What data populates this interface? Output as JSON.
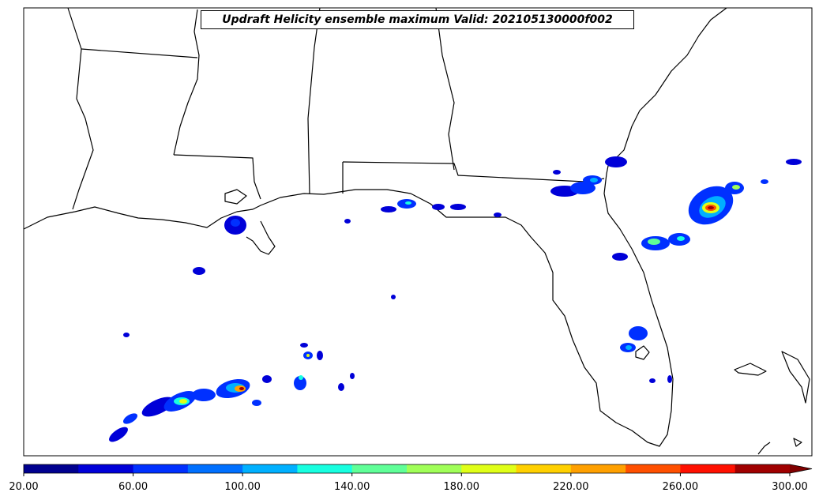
{
  "title": "Updraft Helicity ensemble maximum Valid: 202105130000f002",
  "colorbar": {
    "min": 20,
    "max": 300,
    "step": 20,
    "extend": "max",
    "colors": [
      "#00008f",
      "#0000d8",
      "#0030ff",
      "#0070ff",
      "#00b0ff",
      "#18ffe0",
      "#60ff98",
      "#a0ff58",
      "#e0ff18",
      "#ffd000",
      "#ffa000",
      "#ff5000",
      "#ff1000",
      "#a00000"
    ],
    "extend_color": "#800000",
    "tick_labels": [
      "20.00",
      "60.00",
      "100.00",
      "140.00",
      "180.00",
      "220.00",
      "260.00",
      "300.00"
    ]
  },
  "map": {
    "region": "Gulf of Mexico / Florida / Southeast US",
    "colormap": "jet"
  }
}
